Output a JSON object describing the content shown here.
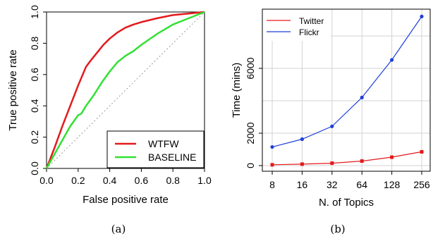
{
  "chart_data": [
    {
      "type": "line",
      "panel_caption": "(a)",
      "xlabel": "False positive rate",
      "ylabel": "True positive rate",
      "xlim": [
        0.0,
        1.0
      ],
      "ylim": [
        0.0,
        1.0
      ],
      "x_ticks": [
        "0.0",
        "0.2",
        "0.4",
        "0.6",
        "0.8",
        "1.0"
      ],
      "y_ticks": [
        "0.0",
        "0.2",
        "0.4",
        "0.6",
        "0.8",
        "1.0"
      ],
      "grid": false,
      "legend_position": "bottom-right",
      "series": [
        {
          "name": "WTFW",
          "color": "#e31a1c",
          "x": [
            0.0,
            0.05,
            0.1,
            0.15,
            0.2,
            0.25,
            0.28,
            0.32,
            0.36,
            0.4,
            0.45,
            0.5,
            0.55,
            0.6,
            0.7,
            0.8,
            0.9,
            1.0
          ],
          "y": [
            0.0,
            0.13,
            0.27,
            0.4,
            0.53,
            0.65,
            0.69,
            0.74,
            0.79,
            0.83,
            0.87,
            0.9,
            0.92,
            0.935,
            0.96,
            0.98,
            0.99,
            1.0
          ]
        },
        {
          "name": "BASELINE",
          "color": "#33e033",
          "x": [
            0.0,
            0.05,
            0.1,
            0.15,
            0.2,
            0.22,
            0.25,
            0.3,
            0.35,
            0.4,
            0.45,
            0.5,
            0.55,
            0.6,
            0.7,
            0.8,
            0.9,
            1.0
          ],
          "y": [
            0.0,
            0.09,
            0.18,
            0.27,
            0.34,
            0.35,
            0.4,
            0.47,
            0.55,
            0.62,
            0.68,
            0.72,
            0.75,
            0.79,
            0.86,
            0.92,
            0.96,
            1.0
          ]
        }
      ],
      "diagonal_reference": true
    },
    {
      "type": "line",
      "panel_caption": "(b)",
      "xlabel": "N. of Topics",
      "ylabel": "Time (mins)",
      "categories": [
        "8",
        "16",
        "32",
        "64",
        "128",
        "256"
      ],
      "x_scale": "log2",
      "ylim": [
        0,
        9000
      ],
      "y_ticks": [
        "0",
        "2000",
        "6000"
      ],
      "grid": true,
      "legend_position": "top-left",
      "series": [
        {
          "name": "Twitter",
          "color": "#e31a1c",
          "marker": "square",
          "values": [
            50,
            90,
            150,
            280,
            520,
            850
          ]
        },
        {
          "name": "Flickr",
          "color": "#1f3fd8",
          "marker": "circle",
          "values": [
            1150,
            1630,
            2420,
            4200,
            6520,
            9200
          ]
        }
      ]
    }
  ]
}
